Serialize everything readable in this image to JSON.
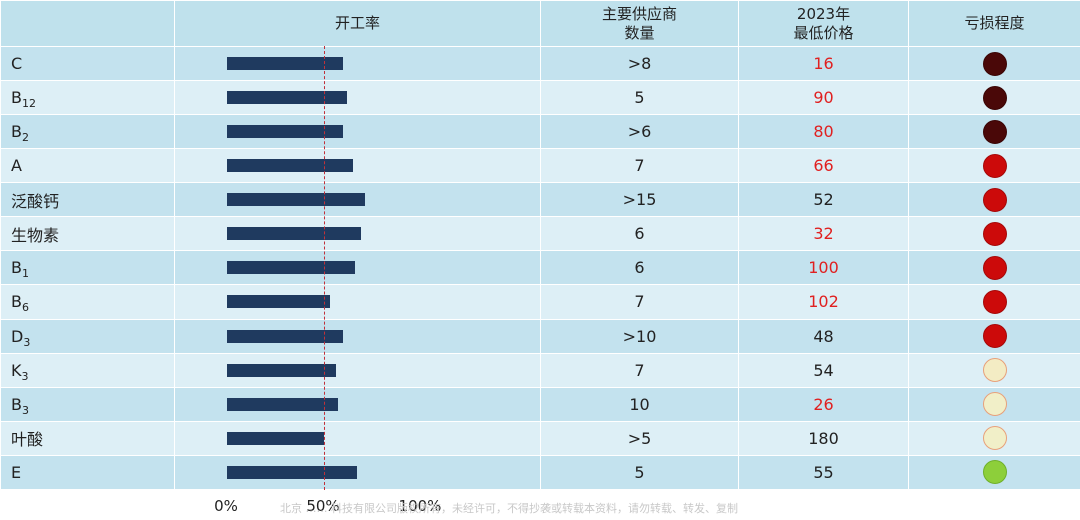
{
  "headers": {
    "name": "",
    "utilization": "开工率",
    "suppliers_line1": "主要供应商",
    "suppliers_line2": "数量",
    "price_line1": "2023年",
    "price_line2": "最低价格",
    "loss": "亏损程度"
  },
  "chart_data": {
    "type": "table",
    "columns": [
      "",
      "开工率",
      "主要供应商数量",
      "2023年最低价格",
      "亏损程度"
    ],
    "axis": {
      "min": 0,
      "max": 100,
      "ticks": [
        "0%",
        "50%",
        "100%"
      ],
      "reference_line": 50
    },
    "colors": {
      "bar": "#1f3a5f",
      "red_price": "#e02020",
      "reference_line": "#c0303a"
    },
    "rows": [
      {
        "name": "C",
        "sub": "",
        "utilization": 60,
        "suppliers": ">8",
        "price": "16",
        "price_red": true,
        "loss_color": "#4a0808",
        "loss_border": "#3a0505"
      },
      {
        "name": "B",
        "sub": "12",
        "utilization": 62,
        "suppliers": "5",
        "price": "90",
        "price_red": true,
        "loss_color": "#4a0808",
        "loss_border": "#3a0505"
      },
      {
        "name": "B",
        "sub": "2",
        "utilization": 60,
        "suppliers": ">6",
        "price": "80",
        "price_red": true,
        "loss_color": "#4a0808",
        "loss_border": "#3a0505"
      },
      {
        "name": "A",
        "sub": "",
        "utilization": 65,
        "suppliers": "7",
        "price": "66",
        "price_red": true,
        "loss_color": "#cc0a0a",
        "loss_border": "#a50808"
      },
      {
        "name": "泛酸钙",
        "sub": "",
        "utilization": 71,
        "suppliers": ">15",
        "price": "52",
        "price_red": false,
        "loss_color": "#cc0a0a",
        "loss_border": "#a50808"
      },
      {
        "name": "生物素",
        "sub": "",
        "utilization": 69,
        "suppliers": "6",
        "price": "32",
        "price_red": true,
        "loss_color": "#cc0a0a",
        "loss_border": "#a50808"
      },
      {
        "name": "B",
        "sub": "1",
        "utilization": 66,
        "suppliers": "6",
        "price": "100",
        "price_red": true,
        "loss_color": "#cc0a0a",
        "loss_border": "#a50808"
      },
      {
        "name": "B",
        "sub": "6",
        "utilization": 53,
        "suppliers": "7",
        "price": "102",
        "price_red": true,
        "loss_color": "#cc0a0a",
        "loss_border": "#a50808"
      },
      {
        "name": "D",
        "sub": "3",
        "utilization": 60,
        "suppliers": ">10",
        "price": "48",
        "price_red": false,
        "loss_color": "#cc0a0a",
        "loss_border": "#a50808"
      },
      {
        "name": "K",
        "sub": "3",
        "utilization": 56,
        "suppliers": "7",
        "price": "54",
        "price_red": false,
        "loss_color": "#f3ecc4",
        "loss_border": "#e8a07a"
      },
      {
        "name": "B",
        "sub": "3",
        "utilization": 57,
        "suppliers": "10",
        "price": "26",
        "price_red": true,
        "loss_color": "#f1efc8",
        "loss_border": "#e8a07a"
      },
      {
        "name": "叶酸",
        "sub": "",
        "utilization": 50,
        "suppliers": ">5",
        "price": "180",
        "price_red": false,
        "loss_color": "#f1efc8",
        "loss_border": "#e8a07a"
      },
      {
        "name": "E",
        "sub": "",
        "utilization": 67,
        "suppliers": "5",
        "price": "55",
        "price_red": false,
        "loss_color": "#8dcf3a",
        "loss_border": "#6fb02a"
      }
    ]
  },
  "footer": "北京 …… 科技有限公司版权所有，未经许可，不得抄袭或转载本资料，请勿转载、转发、复制"
}
